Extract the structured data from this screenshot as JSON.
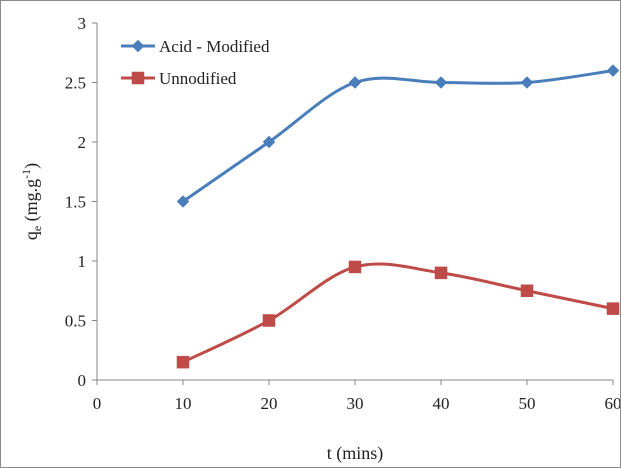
{
  "chart_data": {
    "type": "line",
    "title": "",
    "xlabel": "t (mins)",
    "ylabel": {
      "base": "q",
      "subscript": "e",
      "unit_prefix": " (mg.g",
      "superscript": "-1",
      "unit_suffix": ")"
    },
    "xlim": [
      0,
      60
    ],
    "ylim": [
      0,
      3
    ],
    "x_ticks": [
      0,
      10,
      20,
      30,
      40,
      50,
      60
    ],
    "y_ticks": [
      0,
      0.5,
      1,
      1.5,
      2,
      2.5,
      3
    ],
    "x_tick_labels": [
      "0",
      "10",
      "20",
      "30",
      "40",
      "50",
      "60"
    ],
    "y_tick_labels": [
      "0",
      "0.5",
      "1",
      "1.5",
      "2",
      "2.5",
      "3"
    ],
    "grid": false,
    "legend_position": "top-left",
    "series": [
      {
        "name": "Acid - Modified",
        "color": "#4a7ebb",
        "marker": "diamond",
        "x": [
          10,
          20,
          30,
          40,
          50,
          60
        ],
        "y": [
          1.5,
          2.0,
          2.5,
          2.5,
          2.5,
          2.6
        ]
      },
      {
        "name": "Unnodified",
        "color": "#be4b48",
        "marker": "square",
        "x": [
          10,
          20,
          30,
          40,
          50,
          60
        ],
        "y": [
          0.15,
          0.5,
          0.95,
          0.9,
          0.75,
          0.6
        ]
      }
    ]
  }
}
